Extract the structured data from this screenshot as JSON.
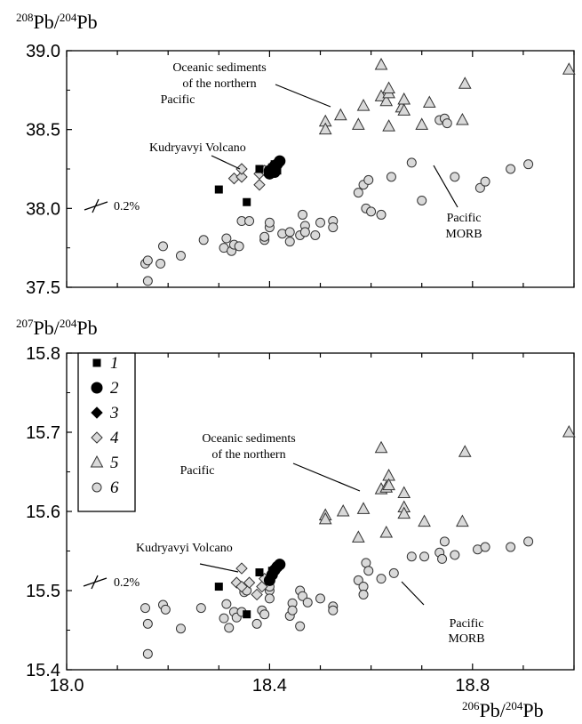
{
  "chart_data": [
    {
      "type": "scatter",
      "ylabel": "208Pb/204Pb",
      "ylabel_parts": {
        "sup1": "208",
        "base1": "Pb/",
        "sup2": "204",
        "base2": "Pb"
      },
      "xlim": [
        18.0,
        19.0
      ],
      "ylim": [
        37.5,
        39.0
      ],
      "yticks": [
        "37.5",
        "38.0",
        "38.5",
        "39.0"
      ],
      "error_label": "0.2%",
      "annotations": {
        "sediments": [
          "Oceanic sediments",
          "of the northern",
          "Pacific"
        ],
        "kudryavyi": "Kudryavyi Volcano",
        "morb": [
          "Pacific",
          "MORB"
        ]
      },
      "series": [
        {
          "id": "1",
          "marker": "square",
          "points": [
            [
              18.3,
              38.12
            ],
            [
              18.355,
              38.04
            ],
            [
              18.38,
              38.25
            ],
            [
              18.405,
              38.26
            ],
            [
              18.415,
              38.24
            ],
            [
              18.41,
              38.28
            ]
          ]
        },
        {
          "id": "2",
          "marker": "circle-filled",
          "points": [
            [
              18.4,
              38.22
            ],
            [
              18.405,
              38.25
            ],
            [
              18.41,
              38.27
            ],
            [
              18.415,
              38.28
            ],
            [
              18.42,
              38.3
            ],
            [
              18.4,
              38.24
            ],
            [
              18.41,
              38.23
            ]
          ]
        },
        {
          "id": "4",
          "marker": "diamond-open",
          "points": [
            [
              18.33,
              38.19
            ],
            [
              18.345,
              38.2
            ],
            [
              18.345,
              38.25
            ],
            [
              18.38,
              38.22
            ],
            [
              18.38,
              38.15
            ],
            [
              18.39,
              38.24
            ]
          ]
        },
        {
          "id": "5",
          "marker": "triangle",
          "points": [
            [
              18.51,
              38.55
            ],
            [
              18.51,
              38.5
            ],
            [
              18.54,
              38.59
            ],
            [
              18.575,
              38.53
            ],
            [
              18.585,
              38.65
            ],
            [
              18.62,
              38.91
            ],
            [
              18.62,
              38.71
            ],
            [
              18.63,
              38.68
            ],
            [
              18.635,
              38.73
            ],
            [
              18.635,
              38.76
            ],
            [
              18.635,
              38.52
            ],
            [
              18.66,
              38.64
            ],
            [
              18.665,
              38.69
            ],
            [
              18.665,
              38.62
            ],
            [
              18.7,
              38.53
            ],
            [
              18.715,
              38.67
            ],
            [
              18.78,
              38.56
            ],
            [
              18.785,
              38.79
            ],
            [
              18.99,
              38.88
            ]
          ]
        },
        {
          "id": "6",
          "marker": "circle-open",
          "points": [
            [
              18.155,
              37.65
            ],
            [
              18.16,
              37.54
            ],
            [
              18.16,
              37.67
            ],
            [
              18.185,
              37.65
            ],
            [
              18.19,
              37.76
            ],
            [
              18.225,
              37.7
            ],
            [
              18.27,
              37.8
            ],
            [
              18.31,
              37.75
            ],
            [
              18.315,
              37.81
            ],
            [
              18.325,
              37.73
            ],
            [
              18.33,
              37.77
            ],
            [
              18.34,
              37.76
            ],
            [
              18.345,
              37.92
            ],
            [
              18.36,
              37.92
            ],
            [
              18.39,
              37.8
            ],
            [
              18.39,
              37.82
            ],
            [
              18.4,
              37.88
            ],
            [
              18.4,
              37.91
            ],
            [
              18.425,
              37.84
            ],
            [
              18.44,
              37.85
            ],
            [
              18.44,
              37.79
            ],
            [
              18.46,
              37.83
            ],
            [
              18.465,
              37.96
            ],
            [
              18.47,
              37.89
            ],
            [
              18.47,
              37.85
            ],
            [
              18.49,
              37.83
            ],
            [
              18.5,
              37.91
            ],
            [
              18.525,
              37.92
            ],
            [
              18.525,
              37.88
            ],
            [
              18.575,
              38.1
            ],
            [
              18.585,
              38.15
            ],
            [
              18.59,
              38.0
            ],
            [
              18.595,
              38.18
            ],
            [
              18.6,
              37.98
            ],
            [
              18.62,
              37.96
            ],
            [
              18.64,
              38.2
            ],
            [
              18.68,
              38.29
            ],
            [
              18.7,
              38.05
            ],
            [
              18.735,
              38.56
            ],
            [
              18.745,
              38.57
            ],
            [
              18.75,
              38.54
            ],
            [
              18.765,
              38.2
            ],
            [
              18.815,
              38.13
            ],
            [
              18.825,
              38.17
            ],
            [
              18.875,
              38.25
            ],
            [
              18.91,
              38.28
            ]
          ]
        }
      ]
    },
    {
      "type": "scatter",
      "ylabel": "207Pb/204Pb",
      "ylabel_parts": {
        "sup1": "207",
        "base1": "Pb/",
        "sup2": "204",
        "base2": "Pb"
      },
      "xlabel": "206Pb/204Pb",
      "xlabel_parts": {
        "sup1": "206",
        "base1": "Pb/",
        "sup2": "204",
        "base2": "Pb"
      },
      "xlim": [
        18.0,
        19.0
      ],
      "ylim": [
        15.4,
        15.8
      ],
      "xticks": [
        "18.0",
        "18.4",
        "18.8"
      ],
      "yticks": [
        "15.4",
        "15.5",
        "15.6",
        "15.7",
        "15.8"
      ],
      "error_label": "0.2%",
      "annotations": {
        "sediments": [
          "Oceanic sediments",
          "of the northern",
          "Pacific"
        ],
        "kudryavyi": "Kudryavyi Volcano",
        "morb": [
          "Pacific",
          "MORB"
        ]
      },
      "legend": [
        {
          "label": "1",
          "marker": "square"
        },
        {
          "label": "2",
          "marker": "circle-filled"
        },
        {
          "label": "3",
          "marker": "diamond-filled"
        },
        {
          "label": "4",
          "marker": "diamond-open"
        },
        {
          "label": "5",
          "marker": "triangle"
        },
        {
          "label": "6",
          "marker": "circle-open"
        }
      ],
      "series": [
        {
          "id": "1",
          "marker": "square",
          "points": [
            [
              18.3,
              15.505
            ],
            [
              18.355,
              15.47
            ],
            [
              18.38,
              15.523
            ],
            [
              18.405,
              15.525
            ]
          ]
        },
        {
          "id": "2",
          "marker": "circle-filled",
          "points": [
            [
              18.4,
              15.513
            ],
            [
              18.405,
              15.52
            ],
            [
              18.41,
              15.526
            ],
            [
              18.415,
              15.53
            ],
            [
              18.42,
              15.533
            ]
          ]
        },
        {
          "id": "4",
          "marker": "diamond-open",
          "points": [
            [
              18.335,
              15.51
            ],
            [
              18.345,
              15.528
            ],
            [
              18.345,
              15.505
            ],
            [
              18.36,
              15.51
            ],
            [
              18.375,
              15.495
            ],
            [
              18.385,
              15.505
            ],
            [
              18.39,
              15.515
            ]
          ]
        },
        {
          "id": "5",
          "marker": "triangle",
          "points": [
            [
              18.51,
              15.595
            ],
            [
              18.51,
              15.59
            ],
            [
              18.545,
              15.6
            ],
            [
              18.575,
              15.567
            ],
            [
              18.585,
              15.603
            ],
            [
              18.62,
              15.68
            ],
            [
              18.62,
              15.628
            ],
            [
              18.63,
              15.63
            ],
            [
              18.635,
              15.645
            ],
            [
              18.635,
              15.633
            ],
            [
              18.63,
              15.573
            ],
            [
              18.665,
              15.623
            ],
            [
              18.665,
              15.605
            ],
            [
              18.665,
              15.597
            ],
            [
              18.705,
              15.587
            ],
            [
              18.78,
              15.587
            ],
            [
              18.785,
              15.675
            ],
            [
              18.99,
              15.7
            ]
          ]
        },
        {
          "id": "6",
          "marker": "circle-open",
          "points": [
            [
              18.155,
              15.478
            ],
            [
              18.16,
              15.458
            ],
            [
              18.16,
              15.42
            ],
            [
              18.19,
              15.482
            ],
            [
              18.195,
              15.476
            ],
            [
              18.225,
              15.452
            ],
            [
              18.265,
              15.478
            ],
            [
              18.31,
              15.465
            ],
            [
              18.315,
              15.483
            ],
            [
              18.32,
              15.453
            ],
            [
              18.33,
              15.473
            ],
            [
              18.335,
              15.466
            ],
            [
              18.345,
              15.473
            ],
            [
              18.35,
              15.498
            ],
            [
              18.355,
              15.5
            ],
            [
              18.375,
              15.458
            ],
            [
              18.385,
              15.475
            ],
            [
              18.39,
              15.47
            ],
            [
              18.4,
              15.5
            ],
            [
              18.4,
              15.505
            ],
            [
              18.4,
              15.49
            ],
            [
              18.44,
              15.468
            ],
            [
              18.445,
              15.484
            ],
            [
              18.445,
              15.475
            ],
            [
              18.46,
              15.455
            ],
            [
              18.46,
              15.5
            ],
            [
              18.465,
              15.493
            ],
            [
              18.475,
              15.485
            ],
            [
              18.5,
              15.49
            ],
            [
              18.525,
              15.48
            ],
            [
              18.525,
              15.475
            ],
            [
              18.575,
              15.513
            ],
            [
              18.585,
              15.505
            ],
            [
              18.585,
              15.495
            ],
            [
              18.59,
              15.535
            ],
            [
              18.595,
              15.525
            ],
            [
              18.62,
              15.515
            ],
            [
              18.645,
              15.522
            ],
            [
              18.68,
              15.543
            ],
            [
              18.705,
              15.543
            ],
            [
              18.735,
              15.548
            ],
            [
              18.74,
              15.54
            ],
            [
              18.745,
              15.562
            ],
            [
              18.765,
              15.545
            ],
            [
              18.81,
              15.552
            ],
            [
              18.825,
              15.555
            ],
            [
              18.875,
              15.555
            ],
            [
              18.91,
              15.562
            ]
          ]
        }
      ]
    }
  ]
}
